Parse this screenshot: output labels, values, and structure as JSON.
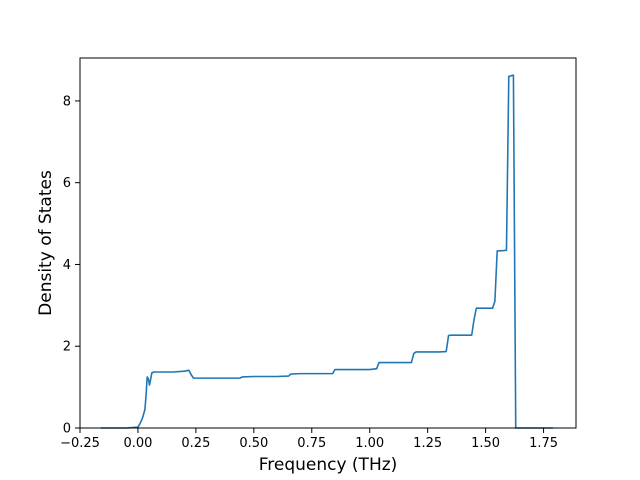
{
  "chart_data": {
    "type": "line",
    "xlabel": "Frequency (THz)",
    "ylabel": "Density of States",
    "xlim": [
      -0.25,
      1.89
    ],
    "ylim": [
      0,
      9.05
    ],
    "x_ticks": [
      -0.25,
      0.0,
      0.25,
      0.5,
      0.75,
      1.0,
      1.25,
      1.5,
      1.75
    ],
    "x_tick_labels": [
      "−0.25",
      "0.00",
      "0.25",
      "0.50",
      "0.75",
      "1.00",
      "1.25",
      "1.50",
      "1.75"
    ],
    "y_ticks": [
      0,
      2,
      4,
      6,
      8
    ],
    "y_tick_labels": [
      "0",
      "2",
      "4",
      "6",
      "8"
    ],
    "grid": false,
    "legend": "none",
    "series": [
      {
        "color": "#1f77b4",
        "x": [
          -0.16,
          -0.05,
          0.0,
          0.01,
          0.02,
          0.03,
          0.035,
          0.04,
          0.045,
          0.05,
          0.055,
          0.06,
          0.07,
          0.1,
          0.15,
          0.2,
          0.22,
          0.23,
          0.24,
          0.3,
          0.35,
          0.4,
          0.44,
          0.45,
          0.5,
          0.55,
          0.6,
          0.65,
          0.66,
          0.7,
          0.75,
          0.8,
          0.84,
          0.85,
          0.9,
          0.95,
          1.0,
          1.03,
          1.04,
          1.1,
          1.15,
          1.18,
          1.19,
          1.2,
          1.25,
          1.3,
          1.33,
          1.34,
          1.35,
          1.4,
          1.44,
          1.45,
          1.46,
          1.5,
          1.53,
          1.54,
          1.55,
          1.58,
          1.59,
          1.6,
          1.62,
          1.63,
          1.64,
          1.7,
          1.79
        ],
        "y": [
          0.0,
          0.0,
          0.02,
          0.12,
          0.25,
          0.45,
          0.8,
          1.25,
          1.2,
          1.05,
          1.2,
          1.35,
          1.37,
          1.37,
          1.37,
          1.39,
          1.41,
          1.3,
          1.22,
          1.22,
          1.22,
          1.22,
          1.22,
          1.25,
          1.26,
          1.26,
          1.26,
          1.27,
          1.32,
          1.33,
          1.33,
          1.33,
          1.33,
          1.43,
          1.43,
          1.43,
          1.43,
          1.45,
          1.6,
          1.6,
          1.6,
          1.6,
          1.82,
          1.86,
          1.86,
          1.86,
          1.87,
          2.26,
          2.27,
          2.27,
          2.27,
          2.65,
          2.93,
          2.93,
          2.93,
          3.1,
          4.33,
          4.34,
          4.35,
          8.6,
          8.63,
          0.0,
          0.0,
          0.0,
          0.0
        ]
      }
    ]
  }
}
